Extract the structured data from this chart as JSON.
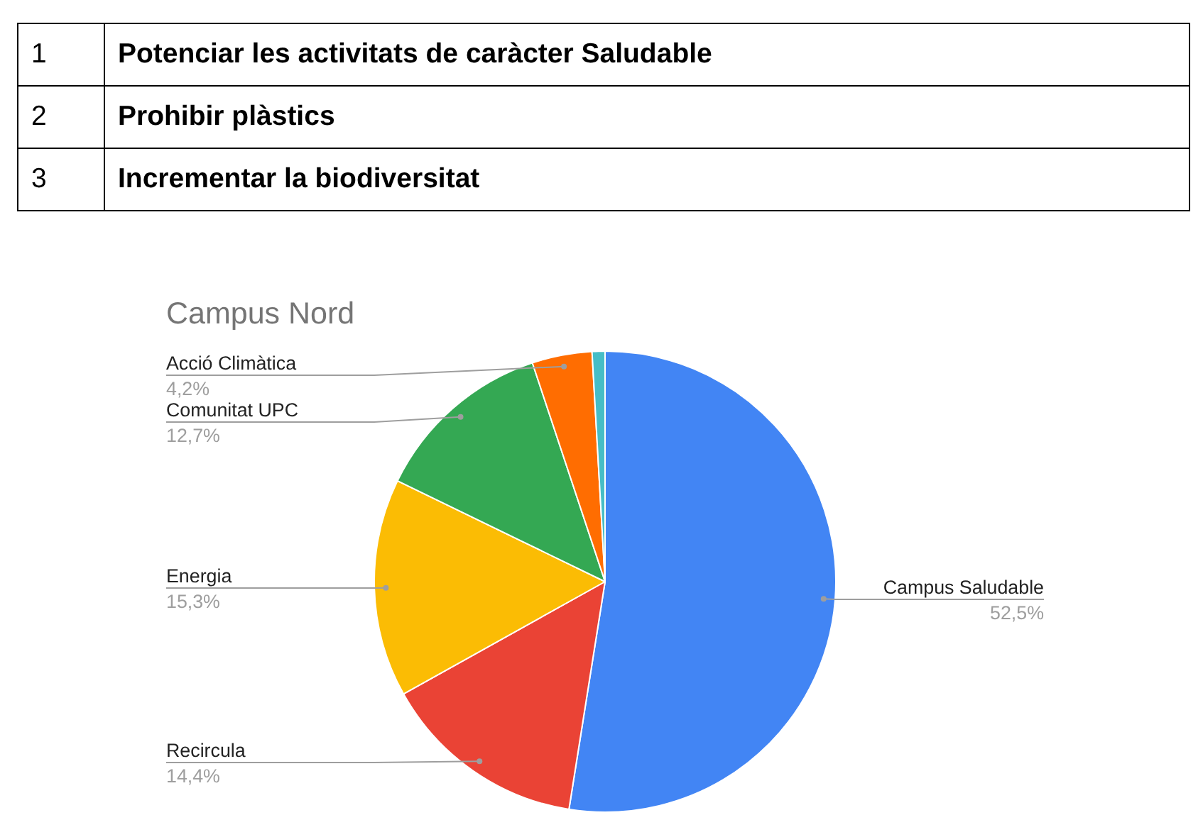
{
  "chart_data": [
    {
      "type": "other",
      "annotations": [
        "1",
        "Potenciar les activitats de caràcter Saludable",
        "2",
        "Prohibir plàstics",
        "3",
        "Incrementar la biodiversitat"
      ]
    },
    {
      "type": "pie",
      "title": "Campus Nord",
      "categories": [
        "Campus Saludable",
        "Recircula",
        "Energia",
        "Comunitat UPC",
        "Acció Climàtica",
        null
      ],
      "values": [
        52.5,
        14.4,
        15.3,
        12.7,
        4.2,
        0.9
      ],
      "colors": [
        "#4285f4",
        "#ea4335",
        "#fbbc04",
        "#34a853",
        "#ff6d01",
        "#46bdc6"
      ],
      "value_labels": [
        "52,5%",
        "14,4%",
        "15,3%",
        "12,7%",
        "4,2%",
        null
      ]
    }
  ]
}
